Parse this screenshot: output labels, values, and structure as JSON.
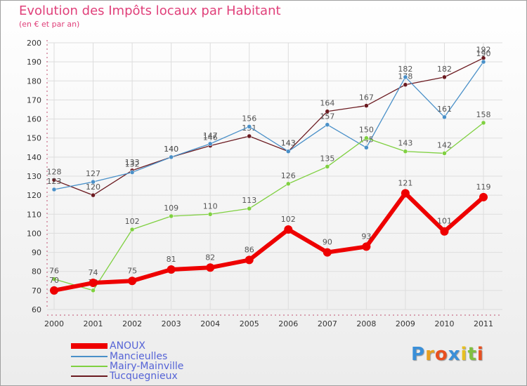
{
  "chart_data": {
    "type": "line",
    "title": "Evolution des Impôts locaux par Habitant",
    "subtitle": "(en € et par an)",
    "x": [
      "2000",
      "2001",
      "2002",
      "2003",
      "2004",
      "2005",
      "2006",
      "2007",
      "2008",
      "2009",
      "2010",
      "2011"
    ],
    "ylim": [
      60,
      200
    ],
    "yticks": [
      60,
      70,
      80,
      90,
      100,
      110,
      120,
      130,
      140,
      150,
      160,
      170,
      180,
      190,
      200
    ],
    "grid": true,
    "legend_position": "bottom-left",
    "series": [
      {
        "name": "Tucquegnieux",
        "color": "#6b1a20",
        "values": [
          128,
          120,
          133,
          140,
          146,
          151,
          143,
          164,
          167,
          178,
          182,
          192
        ]
      },
      {
        "name": "Mancieulles",
        "color": "#4a90c8",
        "values": [
          123,
          127,
          132,
          140,
          147,
          156,
          143,
          157,
          145,
          182,
          161,
          190
        ]
      },
      {
        "name": "Mairy-Mainville",
        "color": "#7fd040",
        "values": [
          76,
          70,
          102,
          109,
          110,
          113,
          126,
          135,
          150,
          143,
          142,
          158
        ]
      },
      {
        "name": "ANOUX",
        "color": "#ee0000",
        "values": [
          70,
          74,
          75,
          81,
          82,
          86,
          102,
          90,
          93,
          121,
          101,
          119
        ]
      }
    ]
  },
  "legend": [
    {
      "label": "ANOUX",
      "color": "#ee0000"
    },
    {
      "label": "Mancieulles",
      "color": "#4a90c8"
    },
    {
      "label": "Mairy-Mainville",
      "color": "#7fd040"
    },
    {
      "label": "Tucquegnieux",
      "color": "#6b1a20"
    }
  ],
  "logo": {
    "letters": [
      "P",
      "r",
      "o",
      "x",
      "i",
      "t",
      "i"
    ],
    "colors": [
      "#3a8fd8",
      "#e8a020",
      "#e85020",
      "#3a8fd8",
      "#e8c020",
      "#80c040",
      "#e85020"
    ]
  }
}
